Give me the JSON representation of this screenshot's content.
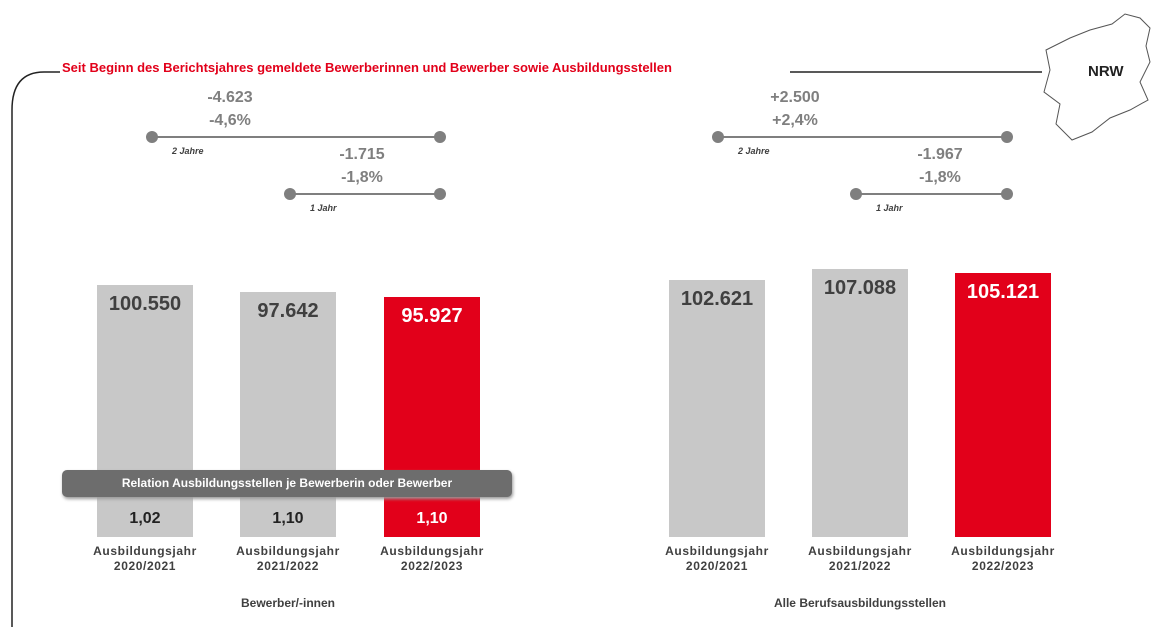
{
  "title": "Seit Beginn des Berichtsjahres gemeldete Bewerberinnen und Bewerber sowie Ausbildungsstellen",
  "region": "NRW",
  "relation_label": "Relation Ausbildungsstellen je Bewerberin oder Bewerber",
  "chart_data": [
    {
      "type": "bar",
      "xlabel": "Bewerber/-innen",
      "categories": [
        "Ausbildungsjahr\n2020/2021",
        "Ausbildungsjahr\n2021/2022",
        "Ausbildungsjahr\n2022/2023"
      ],
      "values": [
        100550,
        97642,
        95927
      ],
      "value_labels": [
        "100.550",
        "97.642",
        "95.927"
      ],
      "colors": [
        "#c8c8c8",
        "#c8c8c8",
        "#e2001a"
      ],
      "ratios": [
        "1,02",
        "1,10",
        "1,10"
      ],
      "changes": [
        {
          "change": "-4.623",
          "percent": "-4,6%",
          "span": "2 Jahre"
        },
        {
          "change": "-1.715",
          "percent": "-1,8%",
          "span": "1 Jahr"
        }
      ]
    },
    {
      "type": "bar",
      "xlabel": "Alle Berufsausbildungsstellen",
      "categories": [
        "Ausbildungsjahr\n2020/2021",
        "Ausbildungsjahr\n2021/2022",
        "Ausbildungsjahr\n2022/2023"
      ],
      "values": [
        102621,
        107088,
        105121
      ],
      "value_labels": [
        "102.621",
        "107.088",
        "105.121"
      ],
      "colors": [
        "#c8c8c8",
        "#c8c8c8",
        "#e2001a"
      ],
      "changes": [
        {
          "change": "+2.500",
          "percent": "+2,4%",
          "span": "2 Jahre"
        },
        {
          "change": "-1.967",
          "percent": "-1,8%",
          "span": "1 Jahr"
        }
      ]
    }
  ]
}
